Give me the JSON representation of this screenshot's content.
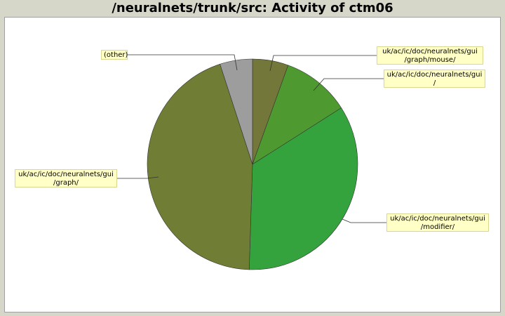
{
  "chart_data": {
    "type": "pie",
    "title": "/neuralnets/trunk/src: Activity of ctm06",
    "slices": [
      {
        "label": "uk/ac/ic/doc/neuralnets/gui\n/graph/mouse/",
        "value": 5.5,
        "color": "#73783a"
      },
      {
        "label": "uk/ac/ic/doc/neuralnets/gui\n/",
        "value": 10.5,
        "color": "#4f9a30"
      },
      {
        "label": "uk/ac/ic/doc/neuralnets/gui\n/modifier/",
        "value": 34.5,
        "color": "#35a33d"
      },
      {
        "label": "uk/ac/ic/doc/neuralnets/gui\n/graph/",
        "value": 44.5,
        "color": "#6f7e34"
      },
      {
        "label": "(other)",
        "value": 5.0,
        "color": "#9d9d9d"
      }
    ]
  }
}
